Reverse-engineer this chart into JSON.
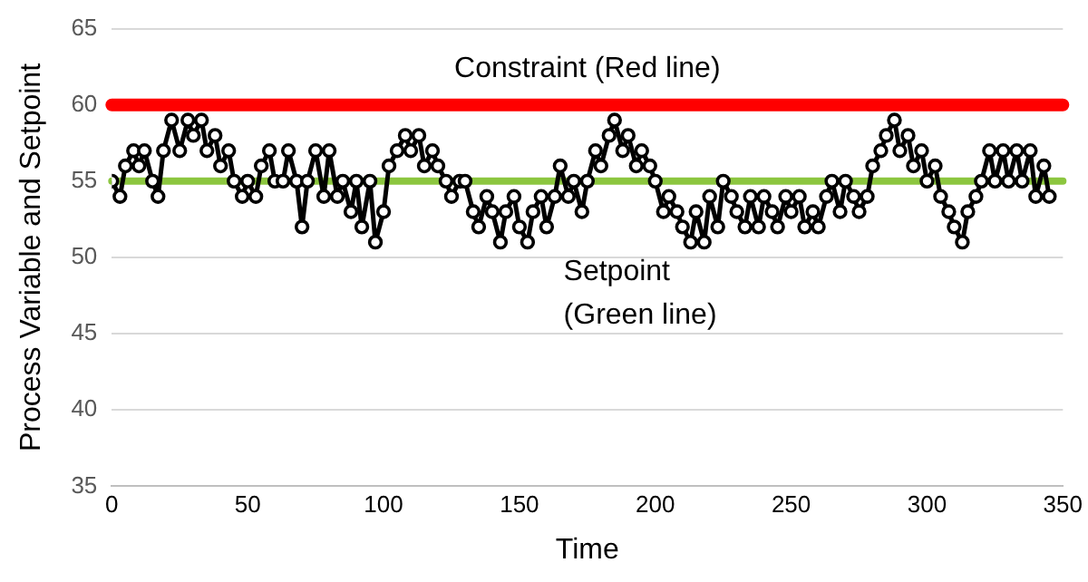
{
  "chart_data": {
    "type": "line",
    "xlabel": "Time",
    "ylabel": "Process Variable and Setpoint",
    "xlim": [
      0,
      350
    ],
    "xticks": [
      0,
      50,
      100,
      150,
      200,
      250,
      300,
      350
    ],
    "ylim": [
      35,
      65
    ],
    "yticks": [
      35,
      40,
      45,
      50,
      55,
      60,
      65
    ],
    "grid": "y",
    "legend": false,
    "marker": "circle",
    "line_style": "solid",
    "series": [
      {
        "color": "#000000",
        "x": [
          0,
          3,
          5,
          8,
          10,
          12,
          15,
          17,
          19,
          22,
          25,
          28,
          30,
          33,
          35,
          38,
          40,
          43,
          45,
          48,
          50,
          53,
          55,
          58,
          60,
          63,
          65,
          68,
          70,
          72,
          75,
          78,
          80,
          83,
          85,
          88,
          90,
          92,
          95,
          97,
          100,
          102,
          105,
          108,
          110,
          113,
          115,
          118,
          120,
          123,
          125,
          128,
          130,
          133,
          135,
          138,
          140,
          143,
          145,
          148,
          150,
          153,
          155,
          158,
          160,
          163,
          165,
          168,
          170,
          173,
          175,
          178,
          180,
          183,
          185,
          188,
          190,
          193,
          195,
          198,
          200,
          203,
          205,
          208,
          210,
          213,
          215,
          218,
          220,
          223,
          225,
          228,
          230,
          233,
          235,
          238,
          240,
          243,
          245,
          248,
          250,
          253,
          255,
          258,
          260,
          263,
          265,
          268,
          270,
          273,
          275,
          278,
          280,
          283,
          285,
          288,
          290,
          293,
          295,
          298,
          300,
          303,
          305,
          308,
          310,
          313,
          315,
          318,
          320,
          323,
          325,
          328,
          330,
          333,
          335,
          338,
          340,
          343,
          345
        ],
        "values": [
          55,
          54,
          56,
          57,
          56,
          57,
          55,
          54,
          57,
          59,
          57,
          59,
          58,
          59,
          57,
          58,
          56,
          57,
          55,
          54,
          55,
          54,
          56,
          57,
          55,
          55,
          57,
          55,
          52,
          55,
          57,
          54,
          57,
          54,
          55,
          53,
          55,
          52,
          55,
          51,
          53,
          56,
          57,
          58,
          57,
          58,
          56,
          57,
          56,
          55,
          54,
          55,
          55,
          53,
          52,
          54,
          53,
          51,
          53,
          54,
          52,
          51,
          53,
          54,
          52,
          54,
          56,
          54,
          55,
          53,
          55,
          57,
          56,
          58,
          59,
          57,
          58,
          56,
          57,
          56,
          55,
          53,
          54,
          53,
          52,
          51,
          53,
          51,
          54,
          52,
          55,
          54,
          53,
          52,
          54,
          52,
          54,
          53,
          52,
          54,
          53,
          54,
          52,
          53,
          52,
          54,
          55,
          53,
          55,
          54,
          53,
          54,
          56,
          57,
          58,
          59,
          57,
          58,
          56,
          57,
          55,
          56,
          54,
          53,
          52,
          51,
          53,
          54,
          55,
          57,
          55,
          57,
          55,
          57,
          55,
          57,
          54,
          56,
          54
        ]
      }
    ],
    "ref_lines": [
      {
        "axis": "y",
        "value": 60,
        "label": "Constraint (Red line)",
        "color": "#ff0000"
      },
      {
        "axis": "y",
        "value": 55,
        "label": "Setpoint\n(Green line)",
        "color": "#8cc63f"
      }
    ]
  }
}
